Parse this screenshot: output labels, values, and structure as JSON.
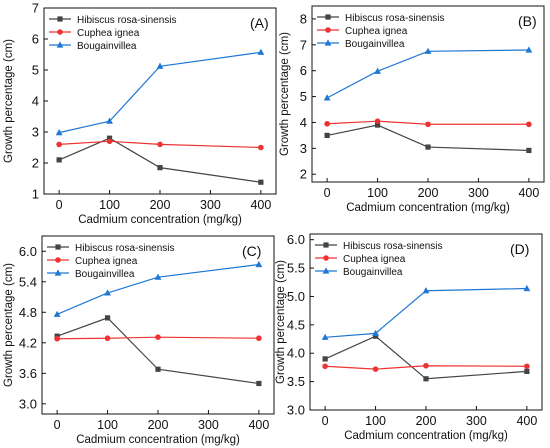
{
  "chart_data": [
    {
      "type": "line",
      "panel_label": "(A)",
      "xlabel": "Cadmium concentration  (mg/kg)",
      "ylabel": "Growth percentage (cm)",
      "x": [
        0,
        100,
        200,
        400
      ],
      "x_ticks": [
        "0",
        "100",
        "200",
        "300",
        "400"
      ],
      "y_ticks": [
        "1",
        "2",
        "3",
        "4",
        "5",
        "6",
        "7"
      ],
      "xlim": [
        -30,
        430
      ],
      "ylim": [
        1,
        7
      ],
      "legend_position": "top-left",
      "series": [
        {
          "name": "Hibiscus rosa-sinensis",
          "values": [
            2.1,
            2.8,
            1.85,
            1.38
          ],
          "color": "#444444",
          "marker": "square"
        },
        {
          "name": "Cuphea ignea",
          "values": [
            2.6,
            2.7,
            2.6,
            2.5
          ],
          "color": "#ee3333",
          "marker": "circle"
        },
        {
          "name": "Bougainvillea",
          "values": [
            2.98,
            3.35,
            5.12,
            5.57
          ],
          "color": "#1f77d4",
          "marker": "triangle"
        }
      ]
    },
    {
      "type": "line",
      "panel_label": "(B)",
      "xlabel": "Cadmium concentration  (mg/kg)",
      "ylabel": "Growth percentage (cm)",
      "x": [
        0,
        100,
        200,
        400
      ],
      "x_ticks": [
        "0",
        "100",
        "200",
        "300",
        "400"
      ],
      "y_ticks": [
        "2",
        "3",
        "4",
        "5",
        "6",
        "7",
        "8"
      ],
      "xlim": [
        -30,
        430
      ],
      "ylim": [
        1.7,
        8.5
      ],
      "legend_position": "top-left",
      "series": [
        {
          "name": "Hibiscus rosa-sinensis",
          "values": [
            3.5,
            3.9,
            3.05,
            2.92
          ],
          "color": "#444444",
          "marker": "square"
        },
        {
          "name": "Cuphea ignea",
          "values": [
            3.95,
            4.05,
            3.93,
            3.93
          ],
          "color": "#ee3333",
          "marker": "circle"
        },
        {
          "name": "Bougainvillea",
          "values": [
            4.95,
            5.98,
            6.75,
            6.8
          ],
          "color": "#1f77d4",
          "marker": "triangle"
        }
      ]
    },
    {
      "type": "line",
      "panel_label": "(C)",
      "xlabel": "Cadmium concentration  (mg/kg)",
      "ylabel": "Growth percentage (cm)",
      "x": [
        0,
        100,
        200,
        400
      ],
      "x_ticks": [
        "0",
        "100",
        "200",
        "300",
        "400"
      ],
      "y_ticks": [
        "3.0",
        "3.6",
        "4.2",
        "4.8",
        "5.4",
        "6.0"
      ],
      "xlim": [
        -30,
        430
      ],
      "ylim": [
        2.8,
        6.3
      ],
      "legend_position": "top-left",
      "series": [
        {
          "name": "Hibiscus rosa-sinensis",
          "values": [
            4.33,
            4.69,
            3.68,
            3.4
          ],
          "color": "#444444",
          "marker": "square"
        },
        {
          "name": "Cuphea ignea",
          "values": [
            4.28,
            4.29,
            4.31,
            4.29
          ],
          "color": "#ee3333",
          "marker": "circle"
        },
        {
          "name": "Bougainvillea",
          "values": [
            4.76,
            5.18,
            5.49,
            5.74
          ],
          "color": "#1f77d4",
          "marker": "triangle"
        }
      ]
    },
    {
      "type": "line",
      "panel_label": "(D)",
      "xlabel": "Cadmium concentration  (mg/kg)",
      "ylabel": "Growth percentage (cm)",
      "x": [
        0,
        100,
        200,
        400
      ],
      "x_ticks": [
        "0",
        "100",
        "200",
        "300",
        "400"
      ],
      "y_ticks": [
        "3.0",
        "3.5",
        "4.0",
        "4.5",
        "5.0",
        "5.5",
        "6.0"
      ],
      "xlim": [
        -30,
        430
      ],
      "ylim": [
        3.0,
        6.1
      ],
      "legend_position": "top-left",
      "series": [
        {
          "name": "Hibiscus rosa-sinensis",
          "values": [
            3.9,
            4.3,
            3.55,
            3.68
          ],
          "color": "#444444",
          "marker": "square"
        },
        {
          "name": "Cuphea ignea",
          "values": [
            3.77,
            3.72,
            3.78,
            3.77
          ],
          "color": "#ee3333",
          "marker": "circle"
        },
        {
          "name": "Bougainvillea",
          "values": [
            4.28,
            4.35,
            5.1,
            5.14
          ],
          "color": "#1f77d4",
          "marker": "triangle"
        }
      ]
    }
  ]
}
